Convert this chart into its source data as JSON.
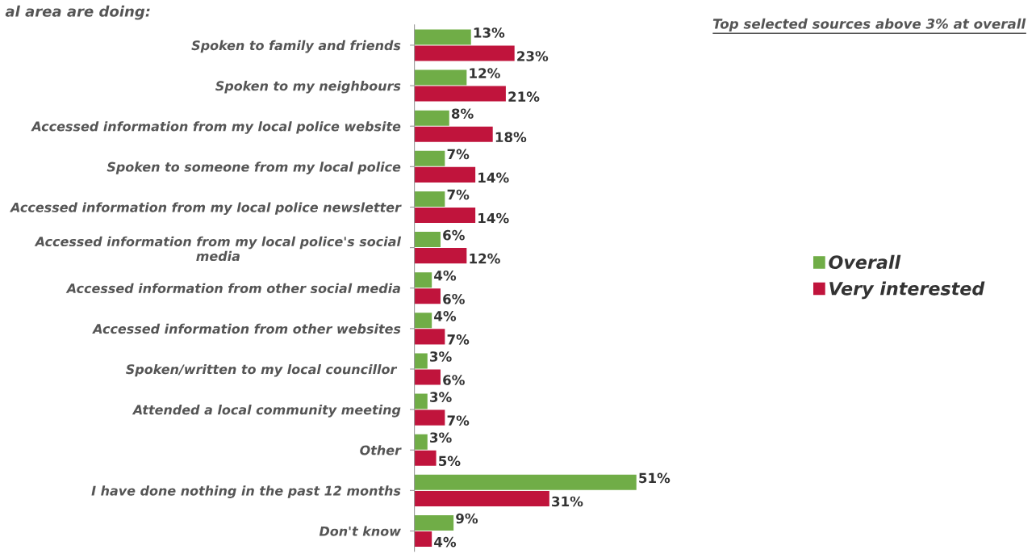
{
  "chart_data": {
    "type": "bar",
    "orientation": "horizontal",
    "title": "al area are doing:",
    "subtitle": "Top selected sources above 3% at overall",
    "categories": [
      "Spoken to family and friends",
      "Spoken to my neighbours",
      "Accessed information from my local police website",
      "Spoken to someone from my local police",
      "Accessed information from my local police newsletter",
      "Accessed information from my local police's social\nmedia",
      "Accessed information from other social media",
      "Accessed information from other websites",
      "Spoken/written to my local councillor ",
      "Attended a local community meeting",
      "Other",
      "I have done nothing in the past 12 months",
      "Don't know"
    ],
    "series": [
      {
        "name": "Overall",
        "color": "#70ad47",
        "values": [
          13,
          12,
          8,
          7,
          7,
          6,
          4,
          4,
          3,
          3,
          3,
          51,
          9
        ],
        "value_labels": [
          "13%",
          "12%",
          "8%",
          "7%",
          "7%",
          "6%",
          "4%",
          "4%",
          "3%",
          "3%",
          "3%",
          "51%",
          "9%"
        ]
      },
      {
        "name": "Very interested",
        "color": "#c0143c",
        "values": [
          23,
          21,
          18,
          14,
          14,
          12,
          6,
          7,
          6,
          7,
          5,
          31,
          4
        ],
        "value_labels": [
          "23%",
          "21%",
          "18%",
          "14%",
          "14%",
          "12%",
          "6%",
          "7%",
          "6%",
          "7%",
          "5%",
          "31%",
          "4%"
        ]
      }
    ],
    "legend": "right",
    "grid": false
  }
}
